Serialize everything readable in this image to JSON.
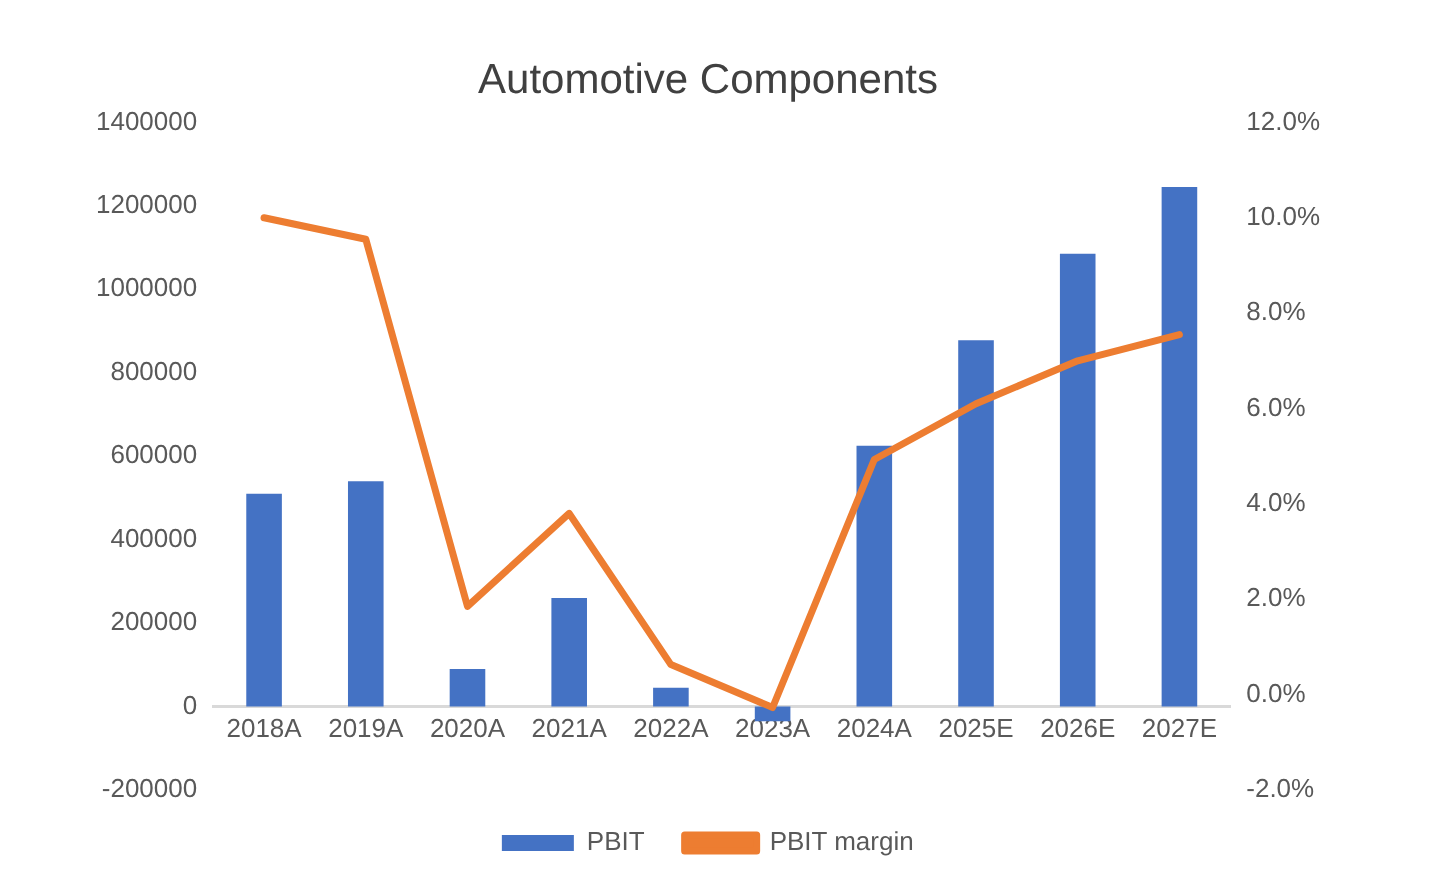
{
  "chart_data": {
    "type": "bar",
    "title": "Automotive Components",
    "categories": [
      "2018A",
      "2019A",
      "2020A",
      "2021A",
      "2022A",
      "2023A",
      "2024A",
      "2025E",
      "2026E",
      "2027E"
    ],
    "series": [
      {
        "name": "PBIT",
        "color": "#4472c4",
        "values": [
          510000,
          540000,
          90000,
          260000,
          45000,
          -35000,
          625000,
          878000,
          1085000,
          1245000
        ]
      },
      {
        "name": "PBIT margin",
        "type": "line",
        "axis": "y2",
        "color": "#ed7d31",
        "values": [
          10.0,
          9.55,
          1.85,
          3.8,
          0.63,
          -0.27,
          4.93,
          6.1,
          7.0,
          7.55
        ]
      }
    ],
    "ylim": [
      -200000,
      1400000
    ],
    "yticks": [
      -200000,
      0,
      200000,
      400000,
      600000,
      800000,
      1000000,
      1200000,
      1400000
    ],
    "y2lim": [
      -2,
      12
    ],
    "y2ticks": [
      {
        "value": -2,
        "label": "-2.0%"
      },
      {
        "value": 0,
        "label": "0.0%"
      },
      {
        "value": 2,
        "label": "2.0%"
      },
      {
        "value": 4,
        "label": "4.0%"
      },
      {
        "value": 6,
        "label": "6.0%"
      },
      {
        "value": 8,
        "label": "8.0%"
      },
      {
        "value": 10,
        "label": "10.0%"
      },
      {
        "value": 12,
        "label": "12.0%"
      }
    ],
    "grid": false,
    "legend": "bottom",
    "marker": "none"
  }
}
